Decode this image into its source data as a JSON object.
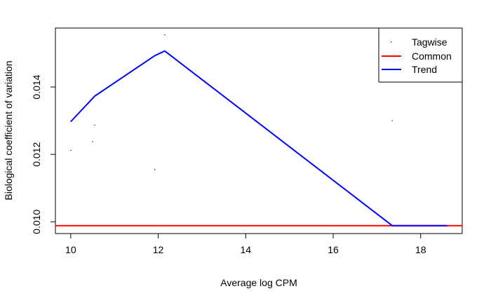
{
  "chart_data": {
    "type": "scatter",
    "title": "",
    "xlabel": "Average log CPM",
    "ylabel": "Biological coefficient of variation",
    "xlim": [
      9.65,
      18.95
    ],
    "ylim": [
      0.00965,
      0.01575
    ],
    "x_ticks": [
      10,
      12,
      14,
      16,
      18
    ],
    "y_ticks": [
      0.01,
      0.012,
      0.014
    ],
    "x_tick_labels": [
      "10",
      "12",
      "14",
      "16",
      "18"
    ],
    "y_tick_labels": [
      "0.010",
      "0.012",
      "0.014"
    ],
    "grid": false,
    "legend_position": "top-right",
    "series": [
      {
        "name": "Tagwise",
        "kind": "points",
        "color": "#000000",
        "points": [
          {
            "x": 10.0,
            "y": 0.01212
          },
          {
            "x": 10.5,
            "y": 0.01238
          },
          {
            "x": 10.55,
            "y": 0.01287
          },
          {
            "x": 11.92,
            "y": 0.01155
          },
          {
            "x": 12.15,
            "y": 0.01555
          },
          {
            "x": 17.35,
            "y": 0.013
          }
        ]
      },
      {
        "name": "Common",
        "kind": "hline",
        "color": "#ff0000",
        "y": 0.009885
      },
      {
        "name": "Trend",
        "kind": "line",
        "color": "#0000ff",
        "points": [
          {
            "x": 10.0,
            "y": 0.01297
          },
          {
            "x": 10.55,
            "y": 0.01373
          },
          {
            "x": 11.92,
            "y": 0.01493
          },
          {
            "x": 12.15,
            "y": 0.01507
          },
          {
            "x": 17.35,
            "y": 0.009885
          },
          {
            "x": 18.6,
            "y": 0.009885
          }
        ]
      }
    ]
  }
}
